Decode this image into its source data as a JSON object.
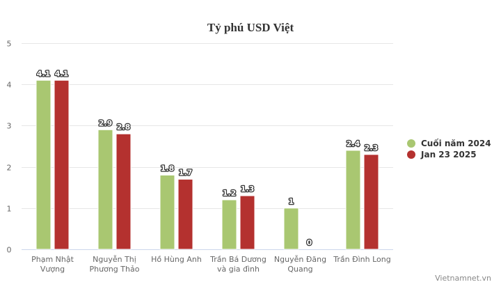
{
  "title": "Tỷ phú USD Việt",
  "watermark": "Vietnamnet.vn",
  "colors": {
    "series1": "#a9c771",
    "series2": "#b4312f",
    "grid": "#e6e6e6",
    "axis": "#ccd6eb",
    "text": "#333333",
    "tick": "#666666"
  },
  "legend": [
    {
      "label": "Cuối năm 2024",
      "color": "#a9c771"
    },
    {
      "label": "Jan 23 2025",
      "color": "#b4312f"
    }
  ],
  "chart_data": {
    "type": "bar",
    "title": "Tỷ phú USD Việt",
    "xlabel": "",
    "ylabel": "",
    "ylim": [
      0,
      5
    ],
    "yticks": [
      0,
      1,
      2,
      3,
      4,
      5
    ],
    "grid": true,
    "legend_position": "right",
    "categories": [
      [
        "Phạm Nhật",
        "Vượng"
      ],
      [
        "Nguyễn Thị",
        "Phương Thảo"
      ],
      [
        "Hồ Hùng Anh"
      ],
      [
        "Trần Bá Dương",
        "và gia đình"
      ],
      [
        "Nguyễn Đăng",
        "Quang"
      ],
      [
        "Trần Đình Long"
      ]
    ],
    "series": [
      {
        "name": "Cuối năm 2024",
        "color": "#a9c771",
        "values": [
          4.1,
          2.9,
          1.8,
          1.2,
          1,
          2.4
        ]
      },
      {
        "name": "Jan 23 2025",
        "color": "#b4312f",
        "values": [
          4.1,
          2.8,
          1.7,
          1.3,
          0,
          2.3
        ]
      }
    ]
  }
}
